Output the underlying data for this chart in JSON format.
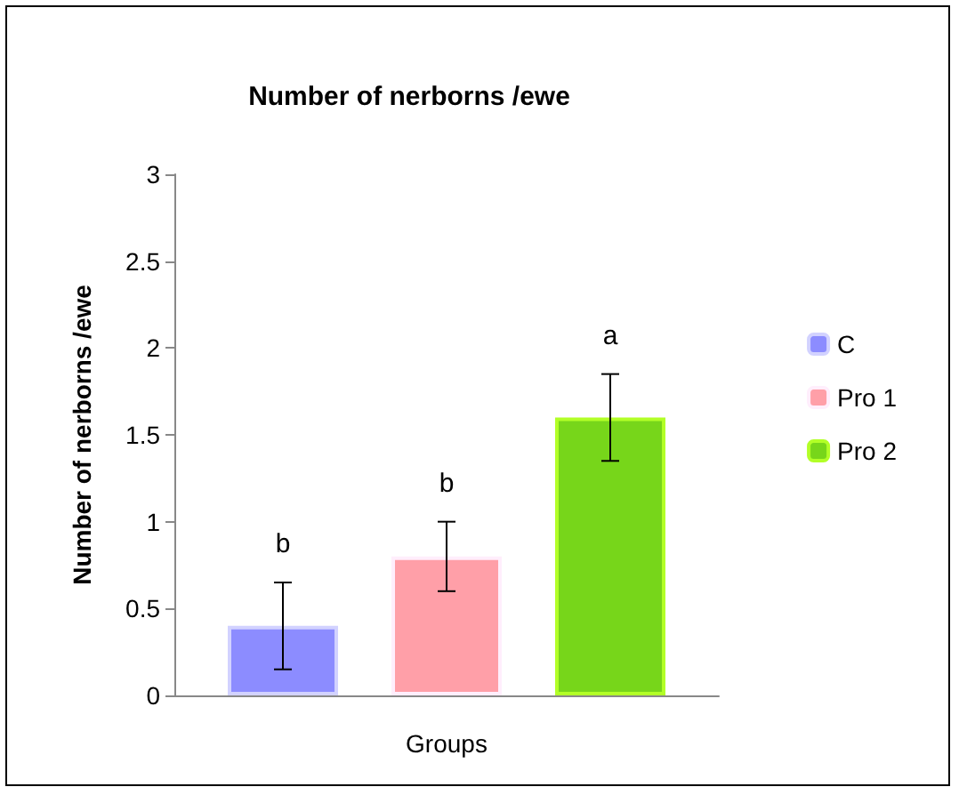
{
  "chart_data": {
    "type": "bar",
    "title": "Number of nerborns /ewe",
    "xlabel": "Groups",
    "ylabel": "Number of nerborns /ewe",
    "categories": [
      null
    ],
    "series": [
      {
        "name": "C",
        "color": "#8c8cff",
        "values": [
          0.4
        ],
        "errors": [
          0.25
        ],
        "value_labels": [
          "b"
        ]
      },
      {
        "name": "Pro 1",
        "color": "#ff9fa8",
        "values": [
          0.8
        ],
        "errors": [
          0.2
        ],
        "value_labels": [
          "b"
        ]
      },
      {
        "name": "Pro 2",
        "color": "#77d61a",
        "values": [
          1.6
        ],
        "errors": [
          0.25
        ],
        "value_labels": [
          "a"
        ]
      }
    ],
    "ylim": [
      0,
      3
    ],
    "yticks": [
      0,
      0.5,
      1,
      1.5,
      2,
      2.5,
      3
    ],
    "grid": false,
    "legend": "right"
  }
}
